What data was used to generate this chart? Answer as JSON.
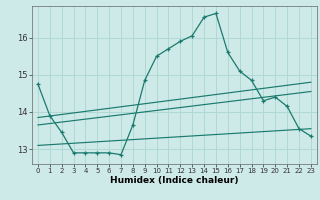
{
  "xlabel": "Humidex (Indice chaleur)",
  "bg_color": "#ceeae8",
  "grid_color": "#b0d8d4",
  "line_color": "#1a7a6e",
  "xlim": [
    -0.5,
    23.5
  ],
  "ylim": [
    12.6,
    16.85
  ],
  "yticks": [
    13,
    14,
    15,
    16
  ],
  "xticks": [
    0,
    1,
    2,
    3,
    4,
    5,
    6,
    7,
    8,
    9,
    10,
    11,
    12,
    13,
    14,
    15,
    16,
    17,
    18,
    19,
    20,
    21,
    22,
    23
  ],
  "series_main": {
    "x": [
      0,
      1,
      2,
      3,
      4,
      5,
      6,
      7,
      8,
      9,
      10,
      11,
      12,
      13,
      14,
      15,
      16,
      17,
      18,
      19,
      20,
      21,
      22,
      23
    ],
    "y": [
      14.75,
      13.9,
      13.45,
      12.9,
      12.9,
      12.9,
      12.9,
      12.85,
      13.65,
      14.85,
      15.5,
      15.7,
      15.9,
      16.05,
      16.55,
      16.65,
      15.6,
      15.1,
      14.85,
      14.3,
      14.4,
      14.15,
      13.55,
      13.35
    ]
  },
  "series_lines": [
    {
      "x": [
        0,
        23
      ],
      "y": [
        13.85,
        14.8
      ]
    },
    {
      "x": [
        0,
        23
      ],
      "y": [
        13.65,
        14.55
      ]
    },
    {
      "x": [
        0,
        23
      ],
      "y": [
        13.1,
        13.55
      ]
    }
  ]
}
